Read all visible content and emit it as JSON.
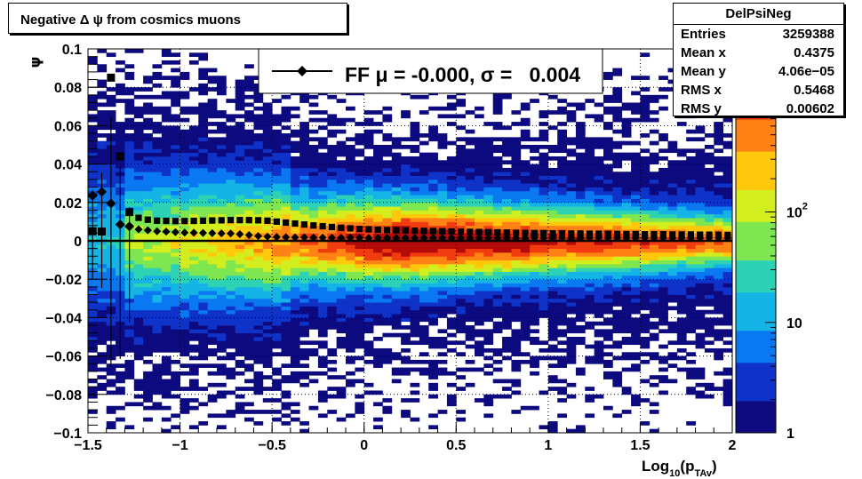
{
  "title": "Negative Δ ψ from cosmics muons",
  "stats": {
    "name": "DelPsiNeg",
    "rows": [
      {
        "label": "Entries",
        "value": "3259388"
      },
      {
        "label": "Mean x",
        "value": "0.4375"
      },
      {
        "label": "Mean y",
        "value": "4.06e−05"
      },
      {
        "label": "RMS x",
        "value": "0.5468"
      },
      {
        "label": "RMS y",
        "value": "0.00602"
      }
    ]
  },
  "legend": {
    "text": "FF μ = -0.000, σ =   0.004"
  },
  "colors": {
    "palette": [
      "#0d0a80",
      "#0f32c8",
      "#0a78f0",
      "#15b4e6",
      "#2dd2b4",
      "#7de650",
      "#d2ee1e",
      "#ffc80a",
      "#ff8214",
      "#f03c0f",
      "#b40a0a"
    ],
    "markers": "#000000"
  },
  "chart_data": {
    "type": "heatmap",
    "xlabel": "Log",
    "xlabel_sub1": "10",
    "xlabel_paren": "(p",
    "xlabel_sub2": "TAv",
    "xlabel_close": ")",
    "ylabel": "ψ",
    "xlim": [
      -1.5,
      2.0
    ],
    "ylim": [
      -0.1,
      0.1
    ],
    "x_ticks": [
      {
        "value": -1.5,
        "label": "−1.5"
      },
      {
        "value": -1.0,
        "label": "−1"
      },
      {
        "value": -0.5,
        "label": "−0.5"
      },
      {
        "value": 0.0,
        "label": "0"
      },
      {
        "value": 0.5,
        "label": "0.5"
      },
      {
        "value": 1.0,
        "label": "1"
      },
      {
        "value": 1.5,
        "label": "1.5"
      },
      {
        "value": 2.0,
        "label": "2"
      }
    ],
    "y_ticks": [
      {
        "value": -0.1,
        "label": "−0.1"
      },
      {
        "value": -0.08,
        "label": "−0.08"
      },
      {
        "value": -0.06,
        "label": "−0.06"
      },
      {
        "value": -0.04,
        "label": "−0.04"
      },
      {
        "value": -0.02,
        "label": "−0.02"
      },
      {
        "value": 0.0,
        "label": "0"
      },
      {
        "value": 0.02,
        "label": "0.02"
      },
      {
        "value": 0.04,
        "label": "0.04"
      },
      {
        "value": 0.06,
        "label": "0.06"
      },
      {
        "value": 0.08,
        "label": "0.08"
      },
      {
        "value": 0.1,
        "label": "0.1"
      }
    ],
    "grid": true,
    "z_scale": "log",
    "zlim": [
      1,
      3000
    ],
    "z_ticks": [
      {
        "value": 1,
        "label": "1"
      },
      {
        "value": 10,
        "label": "10"
      },
      {
        "value": 100,
        "label_base": "10",
        "label_exp": "2"
      },
      {
        "value": 1000,
        "label_base": "10",
        "label_exp": "3"
      }
    ],
    "bins": {
      "nx": 70,
      "ny": 100
    },
    "mean_series": {
      "name": "FF",
      "marker": "diamond",
      "x": [
        -1.475,
        -1.425,
        -1.375,
        -1.325,
        -1.275,
        -1.225,
        -1.175,
        -1.125,
        -1.075,
        -1.025,
        -0.975,
        -0.925,
        -0.875,
        -0.825,
        -0.775,
        -0.725,
        -0.675,
        -0.625,
        -0.575,
        -0.525,
        -0.475,
        -0.425,
        -0.375,
        -0.325,
        -0.275,
        -0.225,
        -0.175,
        -0.125,
        -0.075,
        -0.025,
        0.025,
        0.075,
        0.125,
        0.175,
        0.225,
        0.275,
        0.325,
        0.375,
        0.425,
        0.475,
        0.525,
        0.575,
        0.625,
        0.675,
        0.725,
        0.775,
        0.825,
        0.875,
        0.925,
        0.975,
        1.025,
        1.075,
        1.125,
        1.175,
        1.225,
        1.275,
        1.325,
        1.375,
        1.425,
        1.475,
        1.525,
        1.575,
        1.625,
        1.675,
        1.725,
        1.775,
        1.825,
        1.875,
        1.925,
        1.975
      ],
      "y": [
        0.0235,
        0.0255,
        0.0195,
        0.0085,
        0.0075,
        0.006,
        0.0055,
        0.005,
        0.0048,
        0.0045,
        0.0043,
        0.0042,
        0.0041,
        0.004,
        0.0039,
        0.0038,
        0.0035,
        0.003,
        0.0025,
        0.0022,
        0.002,
        0.0019,
        0.0018,
        0.0018,
        0.0017,
        0.0017,
        0.0016,
        0.0016,
        0.0016,
        0.0015,
        0.0015,
        0.0015,
        0.0015,
        0.0015,
        0.0015,
        0.0015,
        0.0015,
        0.0015,
        0.0015,
        0.0015,
        0.0015,
        0.0015,
        0.0015,
        0.0015,
        0.0015,
        0.0015,
        0.0015,
        0.0015,
        0.0015,
        0.0015,
        0.0015,
        0.0015,
        0.0015,
        0.0015,
        0.0015,
        0.0015,
        0.0015,
        0.0015,
        0.0015,
        0.0015,
        0.0015,
        0.0015,
        0.0015,
        0.0015,
        0.0015,
        0.0015,
        0.0015,
        0.0015,
        0.0015,
        0.0015
      ],
      "yerr_firstbins": [
        0.003,
        0.01,
        0.045,
        0.03,
        0.01
      ]
    },
    "sigma_series": {
      "marker": "square",
      "x": [
        -1.475,
        -1.425,
        -1.375,
        -1.325,
        -1.275,
        -1.225,
        -1.175,
        -1.125,
        -1.075,
        -1.025,
        -0.975,
        -0.925,
        -0.875,
        -0.825,
        -0.775,
        -0.725,
        -0.675,
        -0.625,
        -0.575,
        -0.525,
        -0.475,
        -0.425,
        -0.375,
        -0.325,
        -0.275,
        -0.225,
        -0.175,
        -0.125,
        -0.075,
        -0.025,
        0.025,
        0.075,
        0.125,
        0.175,
        0.225,
        0.275,
        0.325,
        0.375,
        0.425,
        0.475,
        0.525,
        0.575,
        0.625,
        0.675,
        0.725,
        0.775,
        0.825,
        0.875,
        0.925,
        0.975,
        1.025,
        1.075,
        1.125,
        1.175,
        1.225,
        1.275,
        1.325,
        1.375,
        1.425,
        1.475,
        1.525,
        1.575,
        1.625,
        1.675,
        1.725,
        1.775,
        1.825,
        1.875,
        1.925,
        1.975
      ],
      "y": [
        0.005,
        0.0048,
        0.085,
        0.044,
        0.015,
        0.012,
        0.011,
        0.0105,
        0.0104,
        0.0103,
        0.0103,
        0.0104,
        0.0105,
        0.0106,
        0.0107,
        0.0108,
        0.0108,
        0.0108,
        0.0107,
        0.0105,
        0.01,
        0.0095,
        0.009,
        0.0085,
        0.008,
        0.0076,
        0.0072,
        0.0068,
        0.0065,
        0.0062,
        0.006,
        0.0058,
        0.0056,
        0.0055,
        0.0054,
        0.0053,
        0.0052,
        0.0051,
        0.005,
        0.0049,
        0.0048,
        0.0047,
        0.0046,
        0.0045,
        0.0044,
        0.0043,
        0.0042,
        0.0041,
        0.004,
        0.004,
        0.0039,
        0.0039,
        0.0038,
        0.0038,
        0.0037,
        0.0037,
        0.0036,
        0.0036,
        0.0035,
        0.0035,
        0.0034,
        0.0034,
        0.0034,
        0.0033,
        0.0033,
        0.0033,
        0.0032,
        0.0032,
        0.0032,
        0.0031
      ]
    },
    "fit_line": {
      "y": 0.0
    }
  }
}
